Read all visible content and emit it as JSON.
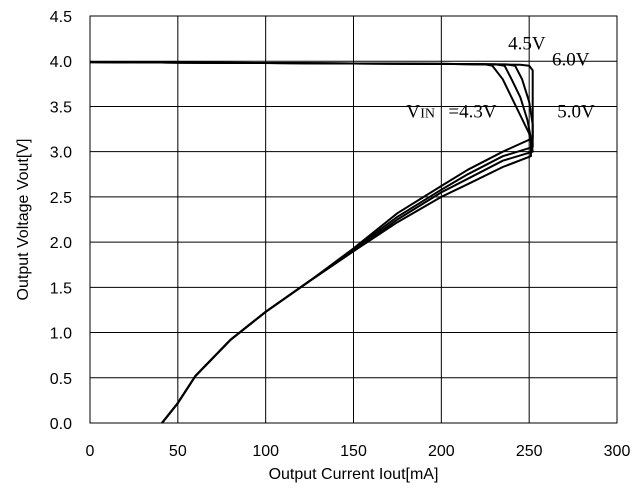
{
  "chart_data": {
    "type": "line",
    "title": "",
    "xlabel": "Output Current Iout[mA]",
    "ylabel": "Output Voltage Vout[V]",
    "xlim": [
      0,
      300
    ],
    "ylim": [
      0,
      4.5
    ],
    "x_ticks": [
      "0",
      "50",
      "100",
      "150",
      "200",
      "250",
      "300"
    ],
    "y_ticks": [
      "0.0",
      "0.5",
      "1.0",
      "1.5",
      "2.0",
      "2.5",
      "3.0",
      "3.5",
      "4.0",
      "4.5"
    ],
    "grid": true,
    "annotations": [
      {
        "text": "4.5V",
        "x": 238,
        "y": 4.13
      },
      {
        "text": "6.0V",
        "x": 263,
        "y": 3.95
      },
      {
        "text": "V",
        "x": 180,
        "y": 3.38
      },
      {
        "text": "IN",
        "x": 188,
        "y": 3.38
      },
      {
        "text": "=4.3V",
        "x": 204,
        "y": 3.38
      },
      {
        "text": "5.0V",
        "x": 266,
        "y": 3.38
      }
    ],
    "series": [
      {
        "points": [
          [
            0,
            3.99
          ],
          [
            50,
            3.985
          ],
          [
            100,
            3.98
          ],
          [
            150,
            3.975
          ],
          [
            200,
            3.97
          ],
          [
            225,
            3.965
          ],
          [
            229,
            3.95
          ],
          [
            235,
            3.8
          ],
          [
            240,
            3.6
          ],
          [
            245,
            3.4
          ],
          [
            250,
            3.2
          ],
          [
            251,
            3.1
          ],
          [
            251,
            2.95
          ],
          [
            235,
            2.83
          ],
          [
            215,
            2.64
          ],
          [
            200,
            2.5
          ],
          [
            175,
            2.22
          ],
          [
            150,
            1.9
          ],
          [
            125,
            1.57
          ],
          [
            100,
            1.23
          ],
          [
            80,
            0.92
          ],
          [
            60,
            0.52
          ],
          [
            50,
            0.22
          ],
          [
            41,
            0.0
          ]
        ]
      },
      {
        "points": [
          [
            0,
            3.99
          ],
          [
            50,
            3.985
          ],
          [
            100,
            3.98
          ],
          [
            150,
            3.975
          ],
          [
            200,
            3.97
          ],
          [
            231,
            3.965
          ],
          [
            236,
            3.95
          ],
          [
            240,
            3.8
          ],
          [
            245,
            3.6
          ],
          [
            249,
            3.35
          ],
          [
            251,
            3.15
          ],
          [
            252,
            3.0
          ],
          [
            235,
            2.9
          ],
          [
            215,
            2.7
          ],
          [
            200,
            2.55
          ],
          [
            175,
            2.25
          ],
          [
            150,
            1.9
          ],
          [
            125,
            1.57
          ],
          [
            100,
            1.23
          ],
          [
            80,
            0.92
          ],
          [
            60,
            0.52
          ],
          [
            50,
            0.22
          ],
          [
            41,
            0.0
          ]
        ]
      },
      {
        "points": [
          [
            0,
            3.99
          ],
          [
            50,
            3.985
          ],
          [
            100,
            3.98
          ],
          [
            150,
            3.975
          ],
          [
            200,
            3.97
          ],
          [
            237,
            3.965
          ],
          [
            242,
            3.95
          ],
          [
            246,
            3.8
          ],
          [
            250,
            3.55
          ],
          [
            252,
            3.3
          ],
          [
            252,
            3.05
          ],
          [
            235,
            2.95
          ],
          [
            215,
            2.75
          ],
          [
            200,
            2.58
          ],
          [
            175,
            2.28
          ],
          [
            150,
            1.92
          ],
          [
            125,
            1.57
          ],
          [
            100,
            1.23
          ],
          [
            80,
            0.92
          ],
          [
            60,
            0.52
          ],
          [
            50,
            0.22
          ],
          [
            41,
            0.0
          ]
        ]
      },
      {
        "points": [
          [
            0,
            3.99
          ],
          [
            50,
            3.985
          ],
          [
            100,
            3.98
          ],
          [
            150,
            3.975
          ],
          [
            200,
            3.97
          ],
          [
            245,
            3.96
          ],
          [
            250,
            3.95
          ],
          [
            252,
            3.9
          ],
          [
            252,
            3.5
          ],
          [
            252,
            3.15
          ],
          [
            235,
            3.0
          ],
          [
            215,
            2.8
          ],
          [
            200,
            2.62
          ],
          [
            175,
            2.32
          ],
          [
            150,
            1.93
          ],
          [
            125,
            1.57
          ],
          [
            100,
            1.23
          ],
          [
            80,
            0.92
          ],
          [
            60,
            0.52
          ],
          [
            50,
            0.22
          ],
          [
            41,
            0.0
          ]
        ]
      }
    ]
  }
}
